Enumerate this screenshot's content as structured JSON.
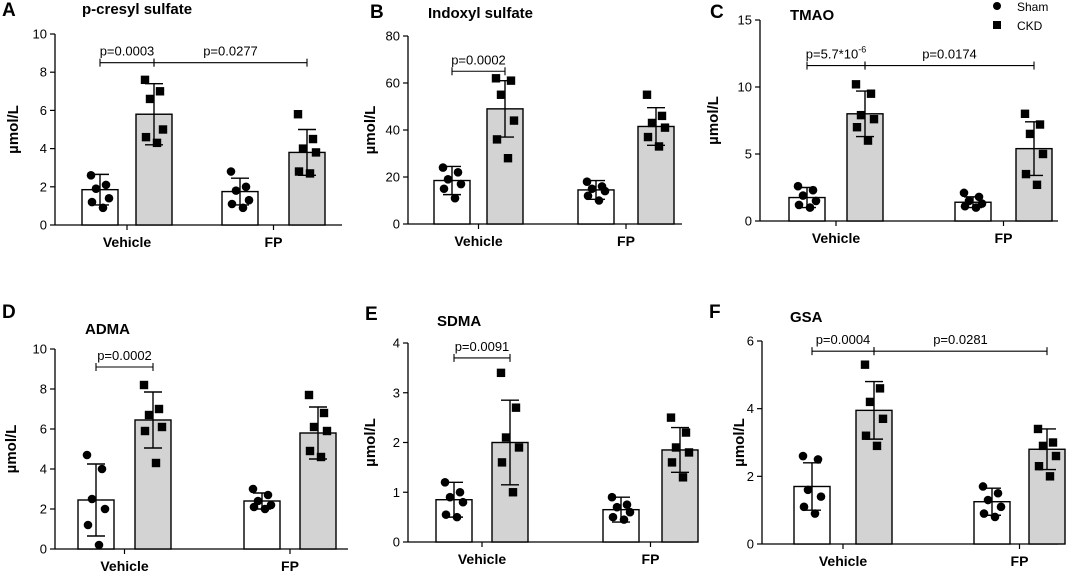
{
  "legend": [
    {
      "name": "Sham",
      "marker": "circle",
      "fill": "#ffffff"
    },
    {
      "name": "CKD",
      "marker": "square",
      "fill": "#d3d3d3"
    }
  ],
  "colors": {
    "sham_bar": "#ffffff",
    "ckd_bar": "#d3d3d3",
    "marker": "#000000",
    "axis": "#000000"
  },
  "chart_data": [
    {
      "panel": "A",
      "title": "p-cresyl sulfate",
      "type": "bar",
      "categories": [
        "Vehicle",
        "FP"
      ],
      "ylabel": "µmol/L",
      "ylim": [
        0,
        10
      ],
      "yticks": [
        0,
        2,
        4,
        6,
        8,
        10
      ],
      "series": [
        {
          "name": "Sham",
          "values": [
            1.85,
            1.75
          ],
          "sd": [
            0.8,
            0.7
          ],
          "points": [
            [
              2.6,
              2.1,
              1.9,
              1.4,
              1.2,
              0.9
            ],
            [
              2.8,
              2.0,
              1.8,
              1.3,
              1.1,
              0.9
            ]
          ]
        },
        {
          "name": "CKD",
          "values": [
            5.8,
            3.8
          ],
          "sd": [
            1.6,
            1.2
          ],
          "points": [
            [
              7.6,
              7.0,
              6.6,
              5.0,
              4.6,
              4.3
            ],
            [
              5.8,
              4.5,
              4.0,
              3.8,
              2.8,
              2.7
            ]
          ]
        }
      ],
      "annotations": [
        {
          "text": "p=0.0003",
          "from": [
            0,
            0
          ],
          "to": [
            0,
            1
          ],
          "y": 8.5
        },
        {
          "text": "p=0.0277",
          "from": [
            0,
            1
          ],
          "to": [
            1,
            1
          ],
          "y": 8.5
        }
      ]
    },
    {
      "panel": "B",
      "title": "Indoxyl sulfate",
      "type": "bar",
      "categories": [
        "Vehicle",
        "FP"
      ],
      "ylabel": "µmol/L",
      "ylim": [
        0,
        80
      ],
      "yticks": [
        0,
        20,
        40,
        60,
        80
      ],
      "series": [
        {
          "name": "Sham",
          "values": [
            18.5,
            14.5
          ],
          "sd": [
            6,
            4
          ],
          "points": [
            [
              24,
              22,
              19,
              17,
              15,
              11
            ],
            [
              18,
              16,
              15,
              14,
              12,
              10
            ]
          ]
        },
        {
          "name": "CKD",
          "values": [
            49,
            41.5
          ],
          "sd": [
            12,
            8
          ],
          "points": [
            [
              62,
              61,
              55,
              44,
              36,
              28
            ],
            [
              55,
              46,
              43,
              41,
              37,
              33
            ]
          ]
        }
      ],
      "annotations": [
        {
          "text": "p=0.0002",
          "from": [
            0,
            0
          ],
          "to": [
            0,
            1
          ],
          "y": 65
        }
      ]
    },
    {
      "panel": "C",
      "title": "TMAO",
      "type": "bar",
      "categories": [
        "Vehicle",
        "FP"
      ],
      "ylabel": "µmol/L",
      "ylim": [
        0,
        15
      ],
      "yticks": [
        0,
        5,
        10,
        15
      ],
      "series": [
        {
          "name": "Sham",
          "values": [
            1.75,
            1.4
          ],
          "sd": [
            0.75,
            0.4
          ],
          "points": [
            [
              2.6,
              2.3,
              1.9,
              1.5,
              1.2,
              1.0
            ],
            [
              2.1,
              1.8,
              1.5,
              1.3,
              1.1,
              1.0
            ]
          ]
        },
        {
          "name": "CKD",
          "values": [
            8.0,
            5.4
          ],
          "sd": [
            1.7,
            2.0
          ],
          "points": [
            [
              10.2,
              9.5,
              7.9,
              7.6,
              7.0,
              6.0
            ],
            [
              8.0,
              7.2,
              6.5,
              5.0,
              3.5,
              2.7
            ]
          ]
        }
      ],
      "annotations": [
        {
          "text": "p=5.7*10",
          "sup": "-6",
          "from": [
            0,
            0
          ],
          "to": [
            0,
            1
          ],
          "y": 11.6
        },
        {
          "text": "p=0.0174",
          "from": [
            0,
            1
          ],
          "to": [
            1,
            1
          ],
          "y": 11.6
        }
      ]
    },
    {
      "panel": "D",
      "title": "ADMA",
      "type": "bar",
      "categories": [
        "Vehicle",
        "FP"
      ],
      "ylabel": "µmol/L",
      "ylim": [
        0,
        10
      ],
      "yticks": [
        0,
        2,
        4,
        6,
        8,
        10
      ],
      "series": [
        {
          "name": "Sham",
          "values": [
            2.45,
            2.4
          ],
          "sd": [
            1.8,
            0.4
          ],
          "points": [
            [
              4.7,
              4.0,
              2.5,
              2.0,
              1.2,
              0.2
            ],
            [
              3.0,
              2.7,
              2.4,
              2.2,
              2.1,
              2.0
            ]
          ]
        },
        {
          "name": "CKD",
          "values": [
            6.45,
            5.8
          ],
          "sd": [
            1.4,
            1.3
          ],
          "points": [
            [
              8.2,
              7.0,
              6.7,
              6.1,
              5.9,
              4.3
            ],
            [
              7.7,
              6.8,
              6.1,
              5.9,
              4.9,
              4.6
            ]
          ]
        }
      ],
      "annotations": [
        {
          "text": "p=0.0002",
          "from": [
            0,
            0
          ],
          "to": [
            0,
            1
          ],
          "y": 9.1
        }
      ]
    },
    {
      "panel": "E",
      "title": "SDMA",
      "type": "bar",
      "categories": [
        "Vehicle",
        "FP"
      ],
      "ylabel": "µmol/L",
      "ylim": [
        0,
        4
      ],
      "yticks": [
        0,
        1,
        2,
        3,
        4
      ],
      "series": [
        {
          "name": "Sham",
          "values": [
            0.85,
            0.65
          ],
          "sd": [
            0.35,
            0.25
          ],
          "points": [
            [
              1.2,
              1.0,
              0.9,
              0.8,
              0.55,
              0.5
            ],
            [
              0.9,
              0.75,
              0.7,
              0.6,
              0.5,
              0.45
            ]
          ]
        },
        {
          "name": "CKD",
          "values": [
            2.0,
            1.85
          ],
          "sd": [
            0.85,
            0.45
          ],
          "points": [
            [
              3.4,
              2.7,
              2.1,
              1.9,
              1.6,
              1.0
            ],
            [
              2.5,
              2.2,
              1.9,
              1.8,
              1.6,
              1.3
            ]
          ]
        }
      ],
      "annotations": [
        {
          "text": "p=0.0091",
          "from": [
            0,
            0
          ],
          "to": [
            0,
            1
          ],
          "y": 3.7
        }
      ]
    },
    {
      "panel": "F",
      "title": "GSA",
      "type": "bar",
      "categories": [
        "Vehicle",
        "FP"
      ],
      "ylabel": "µmol/L",
      "ylim": [
        0,
        6
      ],
      "yticks": [
        0,
        2,
        4,
        6
      ],
      "series": [
        {
          "name": "Sham",
          "values": [
            1.7,
            1.25
          ],
          "sd": [
            0.7,
            0.4
          ],
          "points": [
            [
              2.6,
              2.5,
              1.6,
              1.4,
              1.1,
              0.9
            ],
            [
              1.7,
              1.5,
              1.3,
              1.1,
              0.9,
              0.8
            ]
          ]
        },
        {
          "name": "CKD",
          "values": [
            3.95,
            2.8
          ],
          "sd": [
            0.85,
            0.6
          ],
          "points": [
            [
              5.3,
              4.6,
              4.2,
              3.7,
              3.2,
              2.9
            ],
            [
              3.4,
              3.0,
              2.9,
              2.6,
              2.3,
              2.0
            ]
          ]
        }
      ],
      "annotations": [
        {
          "text": "p=0.0004",
          "from": [
            0,
            0
          ],
          "to": [
            0,
            1
          ],
          "y": 5.7
        },
        {
          "text": "p=0.0281",
          "from": [
            0,
            1
          ],
          "to": [
            1,
            1
          ],
          "y": 5.7
        }
      ]
    }
  ]
}
